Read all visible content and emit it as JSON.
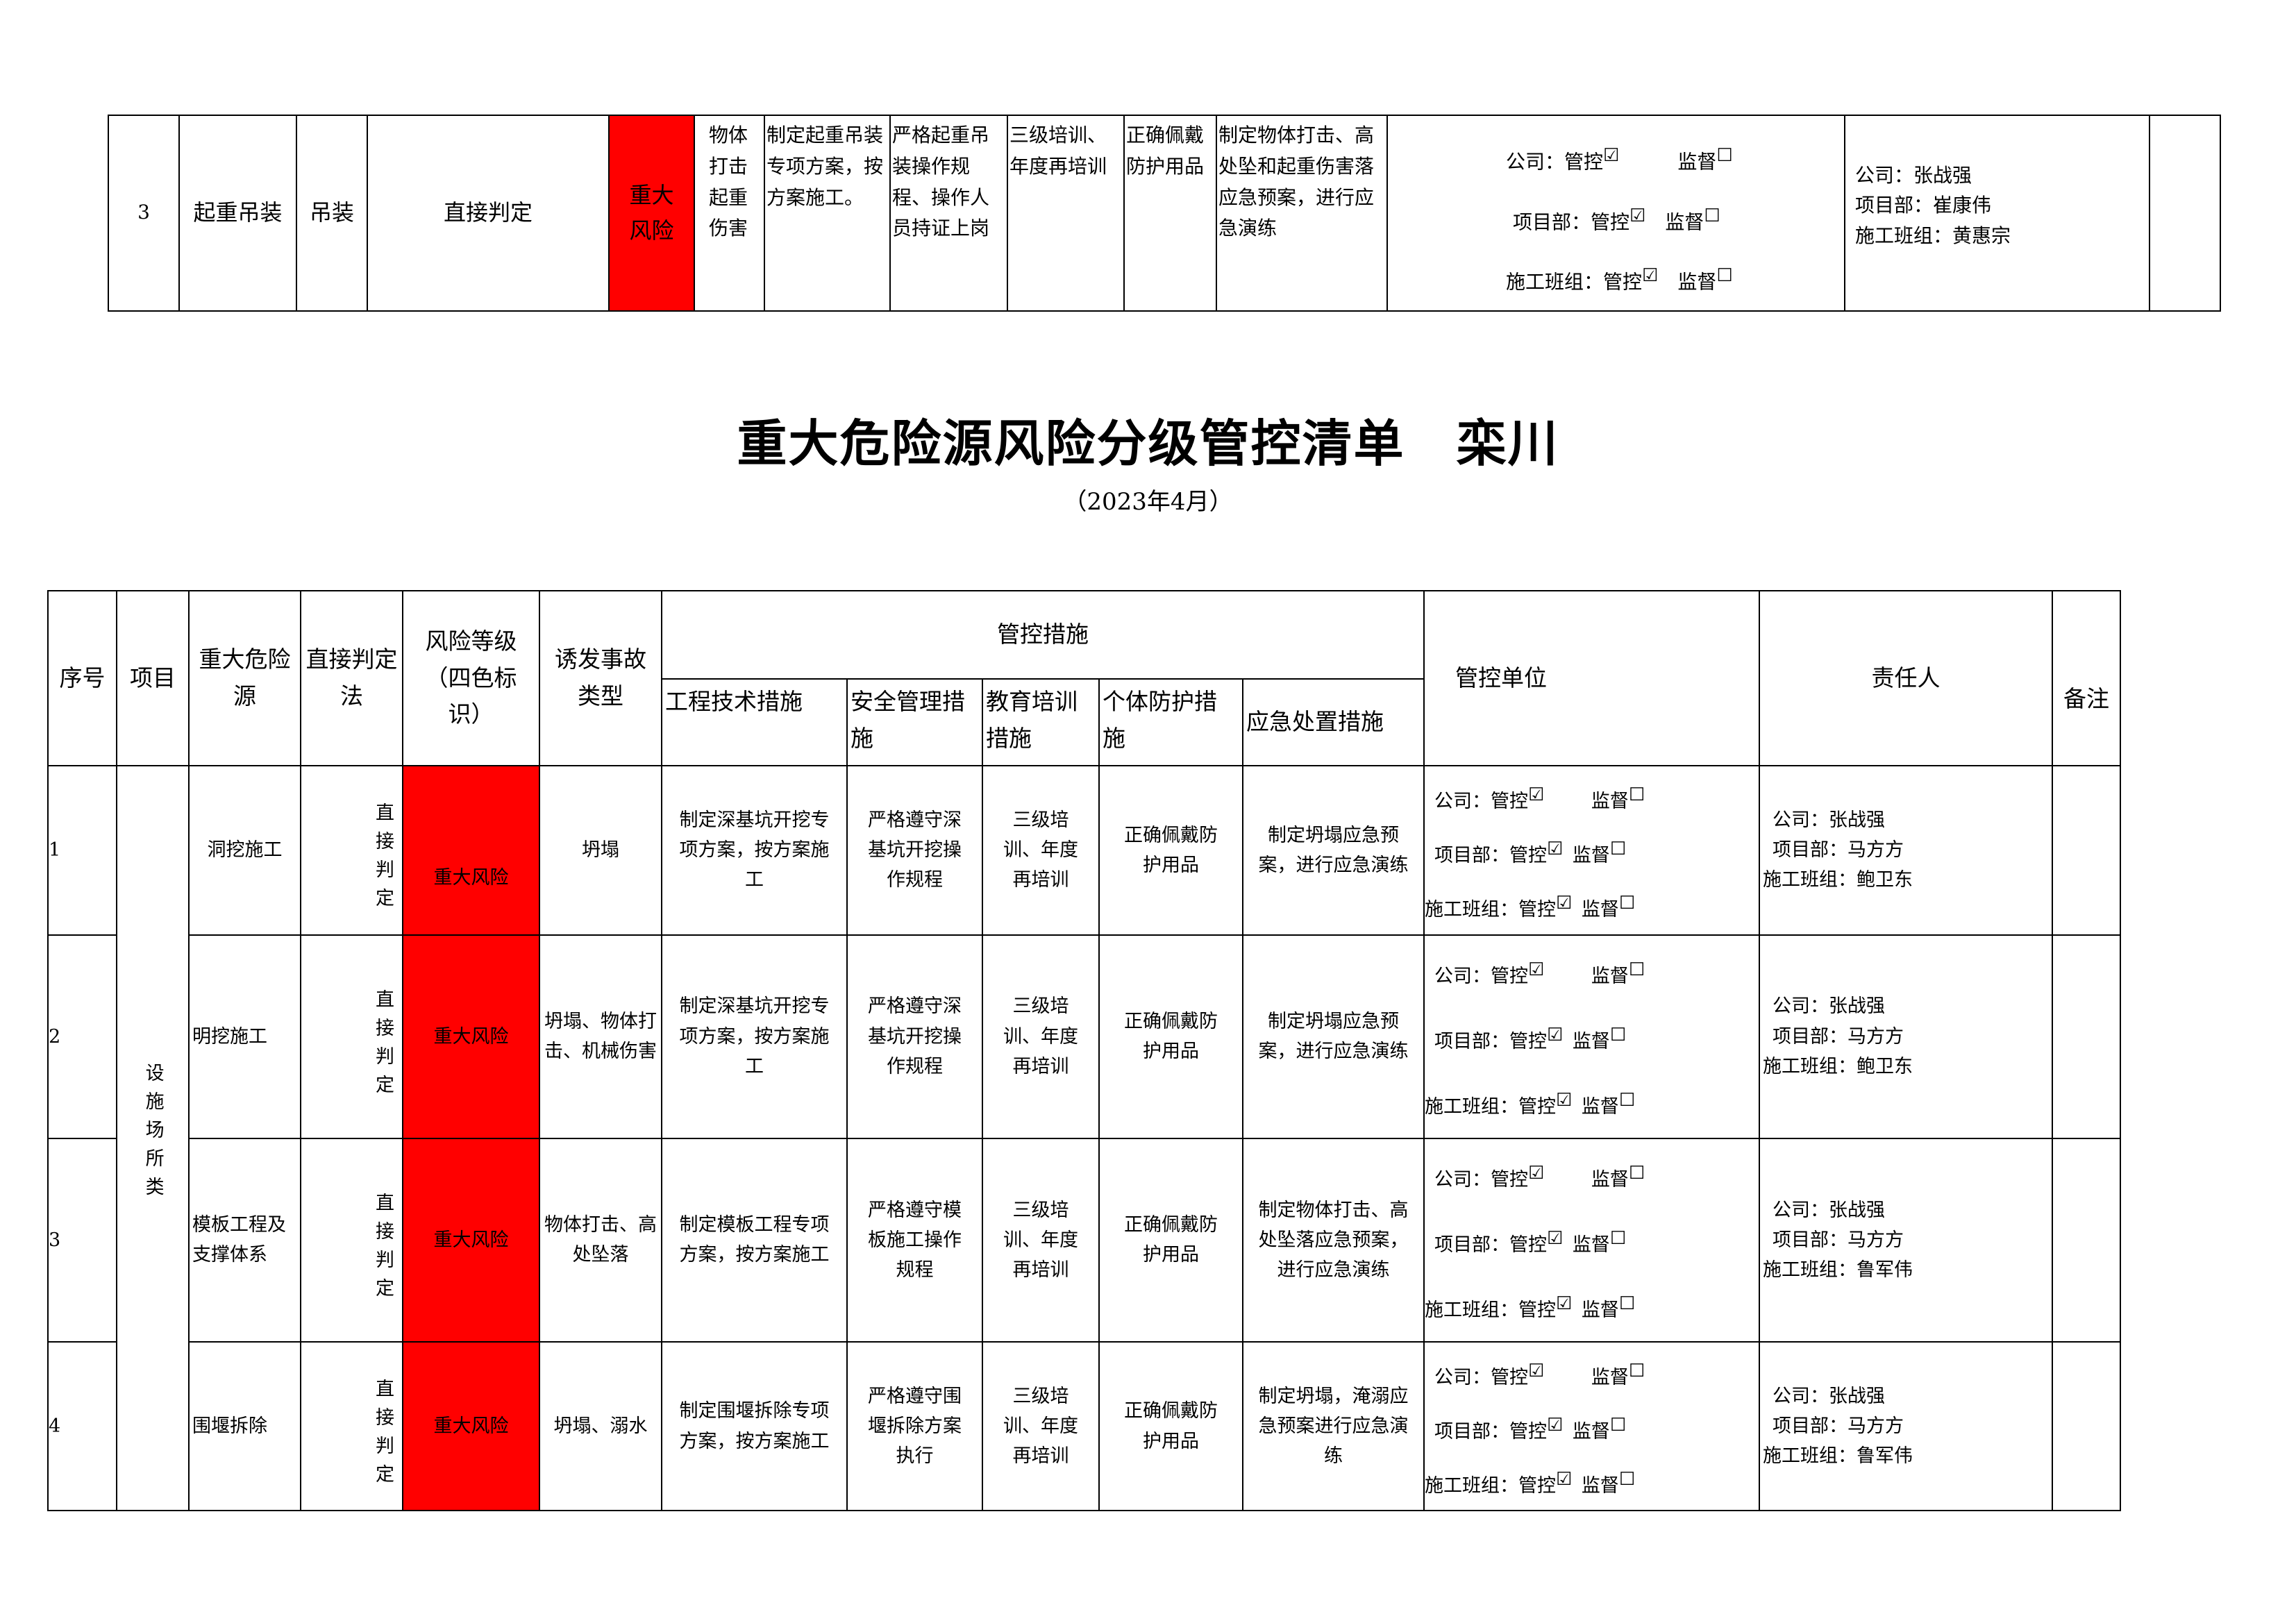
{
  "top_row": {
    "no": "3",
    "project": "起重吊装",
    "source": "吊装",
    "method": "直接判定",
    "risk": "重大风险",
    "accident": "物体打击起重伤害",
    "tech": "制定起重吊装专项方案，按方案施工。",
    "safety": "严格起重吊装操作规程、操作人员持证上岗",
    "training": "三级培训、年度再培训",
    "ppe": "正确佩戴防护用品",
    "emergency": "制定物体打击、高处坠和起重伤害落应急预案，进行应急演练",
    "control": [
      {
        "label": "公司：管控",
        "manage": "☑",
        "sup_label": "监督",
        "supervise": "☐"
      },
      {
        "label": "项目部：管控",
        "manage": "☑",
        "sup_label": "监督",
        "supervise": "☐"
      },
      {
        "label": "施工班组：管控",
        "manage": "☑",
        "sup_label": "监督",
        "supervise": "☐"
      }
    ],
    "responsible": [
      "公司：张战强",
      "项目部：崔康伟",
      "施工班组：黄惠宗"
    ],
    "remark": ""
  },
  "title": "重大危险源风险分级管控清单　栾川",
  "subtitle": "（2023年4月）",
  "headers": {
    "no": "序号",
    "project": "项目",
    "source": "重大危险源",
    "method": "直接判定法",
    "risk": "风险等级（四色标识）",
    "accident": "诱发事故类型",
    "measures": "管控措施",
    "tech": "工程技术措施",
    "safety": "安全管理措施",
    "training": "教育培训措施",
    "ppe": "个体防护措施",
    "emergency": "应急处置措施",
    "unit": "管控单位",
    "responsible": "责任人",
    "remark": "备注"
  },
  "project_group": "设施场所类",
  "colors": {
    "major_risk": "#ff0000"
  },
  "rows": [
    {
      "no": "1",
      "source": "洞挖施工",
      "method": "直接判定",
      "risk": "重大风险",
      "accident": "坍塌",
      "tech": "制定深基坑开挖专项方案，按方案施工",
      "safety": "严格遵守深基坑开挖操作规程",
      "training": "三级培训、年度再培训",
      "ppe": "正确佩戴防护用品",
      "emergency": "制定坍塌应急预案，进行应急演练",
      "control": [
        {
          "label": "公司：管控",
          "manage": "☑",
          "sup_label": "监督",
          "supervise": "☐"
        },
        {
          "label": "项目部：管控",
          "manage": "☑",
          "sup_label": "监督",
          "supervise": "☐"
        },
        {
          "label": "施工班组：管控",
          "manage": "☑",
          "sup_label": "监督",
          "supervise": "☐"
        }
      ],
      "responsible": [
        "公司：张战强",
        "项目部：马方方",
        "施工班组：鲍卫东"
      ],
      "remark": ""
    },
    {
      "no": "2",
      "source": "明挖施工",
      "method": "直接判定",
      "risk": "重大风险",
      "accident": "坍塌、物体打击、机械伤害",
      "tech": "制定深基坑开挖专项方案，按方案施工",
      "safety": "严格遵守深基坑开挖操作规程",
      "training": "三级培训、年度再培训",
      "ppe": "正确佩戴防护用品",
      "emergency": "制定坍塌应急预案，进行应急演练",
      "control": [
        {
          "label": "公司：管控",
          "manage": "☑",
          "sup_label": "监督",
          "supervise": "☐"
        },
        {
          "label": "项目部：管控",
          "manage": "☑",
          "sup_label": "监督",
          "supervise": "☐"
        },
        {
          "label": "施工班组：管控",
          "manage": "☑",
          "sup_label": "监督",
          "supervise": "☐"
        }
      ],
      "responsible": [
        "公司：张战强",
        "项目部：马方方",
        "施工班组：鲍卫东"
      ],
      "remark": ""
    },
    {
      "no": "3",
      "source": "模板工程及支撑体系",
      "method": "直接判定",
      "risk": "重大风险",
      "accident": "物体打击、高处坠落",
      "tech": "制定模板工程专项方案，按方案施工",
      "safety": "严格遵守模板施工操作规程",
      "training": "三级培训、年度再培训",
      "ppe": "正确佩戴防护用品",
      "emergency": "制定物体打击、高处坠落应急预案，进行应急演练",
      "control": [
        {
          "label": "公司：管控",
          "manage": "☑",
          "sup_label": "监督",
          "supervise": "☐"
        },
        {
          "label": "项目部：管控",
          "manage": "☑",
          "sup_label": "监督",
          "supervise": "☐"
        },
        {
          "label": "施工班组：管控",
          "manage": "☑",
          "sup_label": "监督",
          "supervise": "☐"
        }
      ],
      "responsible": [
        "公司：张战强",
        "项目部：马方方",
        "施工班组：鲁军伟"
      ],
      "remark": ""
    },
    {
      "no": "4",
      "source": "围堰拆除",
      "method": "直接判定",
      "risk": "重大风险",
      "accident": "坍塌、溺水",
      "tech": "制定围堰拆除专项方案，按方案施工",
      "safety": "严格遵守围堰拆除方案执行",
      "training": "三级培训、年度再培训",
      "ppe": "正确佩戴防护用品",
      "emergency": "制定坍塌，淹溺应急预案进行应急演练",
      "control": [
        {
          "label": "公司：管控",
          "manage": "☑",
          "sup_label": "监督",
          "supervise": "☐"
        },
        {
          "label": "项目部：管控",
          "manage": "☑",
          "sup_label": "监督",
          "supervise": "☐"
        },
        {
          "label": "施工班组：管控",
          "manage": "☑",
          "sup_label": "监督",
          "supervise": "☐"
        }
      ],
      "responsible": [
        "公司：张战强",
        "项目部：马方方",
        "施工班组：鲁军伟"
      ],
      "remark": ""
    }
  ]
}
